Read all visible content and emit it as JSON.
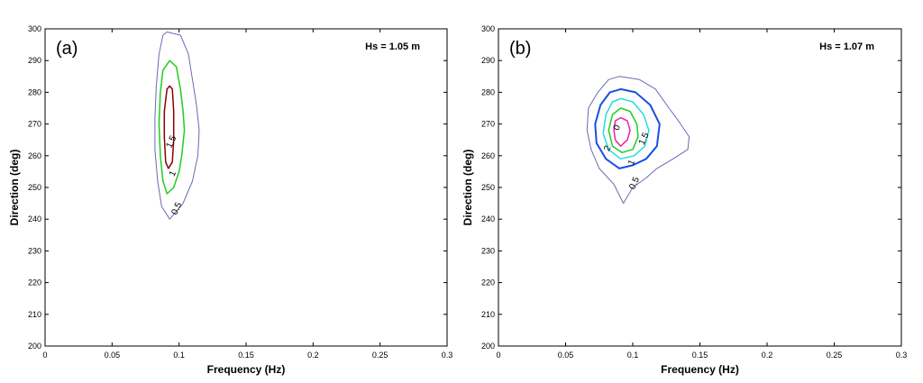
{
  "chart_data": [
    {
      "type": "contour",
      "panel_label": "(a)",
      "annotation": "Hs = 1.05 m",
      "xlabel": "Frequency (Hz)",
      "ylabel": "Direction (deg)",
      "xlim": [
        0,
        0.3
      ],
      "ylim": [
        200,
        300
      ],
      "xticks": [
        "0",
        "0.05",
        "0.1",
        "0.15",
        "0.2",
        "0.25",
        "0.3"
      ],
      "yticks": [
        "200",
        "210",
        "220",
        "230",
        "240",
        "250",
        "260",
        "270",
        "280",
        "290",
        "300"
      ],
      "contours": [
        {
          "level": "0.5",
          "color": "#6a6ab4",
          "width": 1,
          "points": [
            [
              0.091,
              299
            ],
            [
              0.101,
              298
            ],
            [
              0.107,
              292
            ],
            [
              0.11,
              284
            ],
            [
              0.113,
              276
            ],
            [
              0.115,
              268
            ],
            [
              0.114,
              260
            ],
            [
              0.11,
              252
            ],
            [
              0.103,
              245
            ],
            [
              0.093,
              240
            ],
            [
              0.087,
              244
            ],
            [
              0.084,
              252
            ],
            [
              0.082,
              262
            ],
            [
              0.082,
              272
            ],
            [
              0.083,
              282
            ],
            [
              0.085,
              292
            ],
            [
              0.088,
              298
            ]
          ]
        },
        {
          "level": "1",
          "color": "#22cc22",
          "width": 1.5,
          "points": [
            [
              0.093,
              290
            ],
            [
              0.098,
              288
            ],
            [
              0.101,
              281
            ],
            [
              0.103,
              274
            ],
            [
              0.104,
              268
            ],
            [
              0.102,
              260
            ],
            [
              0.1,
              255
            ],
            [
              0.096,
              250
            ],
            [
              0.091,
              248
            ],
            [
              0.088,
              252
            ],
            [
              0.086,
              260
            ],
            [
              0.085,
              270
            ],
            [
              0.086,
              280
            ],
            [
              0.088,
              287
            ]
          ]
        },
        {
          "level": "1.5",
          "color": "#8b0000",
          "width": 1.5,
          "points": [
            [
              0.093,
              282
            ],
            [
              0.095,
              281
            ],
            [
              0.096,
              274
            ],
            [
              0.096,
              265
            ],
            [
              0.095,
              258
            ],
            [
              0.092,
              256
            ],
            [
              0.09,
              258
            ],
            [
              0.089,
              266
            ],
            [
              0.089,
              274
            ],
            [
              0.091,
              281
            ]
          ]
        }
      ],
      "contour_labels": [
        {
          "text": "0.5",
          "x": 0.1,
          "y": 243
        },
        {
          "text": "1",
          "x": 0.097,
          "y": 254
        },
        {
          "text": "1.5",
          "x": 0.096,
          "y": 264
        }
      ]
    },
    {
      "type": "contour",
      "panel_label": "(b)",
      "annotation": "Hs = 1.07 m",
      "xlabel": "Frequency (Hz)",
      "ylabel": "Direction (deg)",
      "xlim": [
        0,
        0.3
      ],
      "ylim": [
        200,
        300
      ],
      "xticks": [
        "0",
        "0.05",
        "0.1",
        "0.15",
        "0.2",
        "0.25",
        "0.3"
      ],
      "yticks": [
        "200",
        "210",
        "220",
        "230",
        "240",
        "250",
        "260",
        "270",
        "280",
        "290",
        "300"
      ],
      "contours": [
        {
          "level": "0.5",
          "color": "#6a6ab4",
          "width": 1,
          "points": [
            [
              0.09,
              285
            ],
            [
              0.105,
              284
            ],
            [
              0.117,
              281
            ],
            [
              0.127,
              275
            ],
            [
              0.134,
              271
            ],
            [
              0.142,
              266
            ],
            [
              0.141,
              262
            ],
            [
              0.13,
              259
            ],
            [
              0.118,
              256
            ],
            [
              0.11,
              253
            ],
            [
              0.1,
              250
            ],
            [
              0.093,
              245
            ],
            [
              0.086,
              251
            ],
            [
              0.075,
              256
            ],
            [
              0.069,
              262
            ],
            [
              0.066,
              268
            ],
            [
              0.067,
              275
            ],
            [
              0.074,
              280
            ],
            [
              0.082,
              284
            ]
          ]
        },
        {
          "level": "1",
          "color": "#1a4fe0",
          "width": 2,
          "points": [
            [
              0.091,
              281
            ],
            [
              0.102,
              280
            ],
            [
              0.113,
              276
            ],
            [
              0.12,
              270
            ],
            [
              0.118,
              263
            ],
            [
              0.11,
              259
            ],
            [
              0.1,
              257
            ],
            [
              0.09,
              256
            ],
            [
              0.08,
              259
            ],
            [
              0.073,
              264
            ],
            [
              0.072,
              270
            ],
            [
              0.076,
              276
            ],
            [
              0.083,
              280
            ]
          ]
        },
        {
          "level": "1.5",
          "color": "#22dddd",
          "width": 1.5,
          "points": [
            [
              0.091,
              278
            ],
            [
              0.1,
              277
            ],
            [
              0.108,
              273
            ],
            [
              0.112,
              268
            ],
            [
              0.109,
              263
            ],
            [
              0.101,
              260
            ],
            [
              0.091,
              259
            ],
            [
              0.082,
              262
            ],
            [
              0.078,
              267
            ],
            [
              0.08,
              273
            ],
            [
              0.085,
              277
            ]
          ]
        },
        {
          "level": "2",
          "color": "#22cc22",
          "width": 1.5,
          "points": [
            [
              0.091,
              275
            ],
            [
              0.098,
              274
            ],
            [
              0.103,
              270
            ],
            [
              0.104,
              266
            ],
            [
              0.1,
              262
            ],
            [
              0.092,
              261
            ],
            [
              0.085,
              263
            ],
            [
              0.082,
              268
            ],
            [
              0.085,
              273
            ]
          ]
        },
        {
          "level": "2.5",
          "color": "#ee22aa",
          "width": 1.5,
          "points": [
            [
              0.091,
              272
            ],
            [
              0.096,
              271
            ],
            [
              0.098,
              268
            ],
            [
              0.096,
              265
            ],
            [
              0.091,
              263
            ],
            [
              0.087,
              265
            ],
            [
              0.086,
              268
            ],
            [
              0.087,
              271
            ]
          ]
        }
      ],
      "contour_labels": [
        {
          "text": "0.5",
          "x": 0.103,
          "y": 251
        },
        {
          "text": "1",
          "x": 0.101,
          "y": 257.5
        },
        {
          "text": "1.5",
          "x": 0.11,
          "y": 265
        },
        {
          "text": "2",
          "x": 0.083,
          "y": 262
        },
        {
          "text": "0",
          "x": 0.09,
          "y": 268.5
        }
      ]
    }
  ]
}
